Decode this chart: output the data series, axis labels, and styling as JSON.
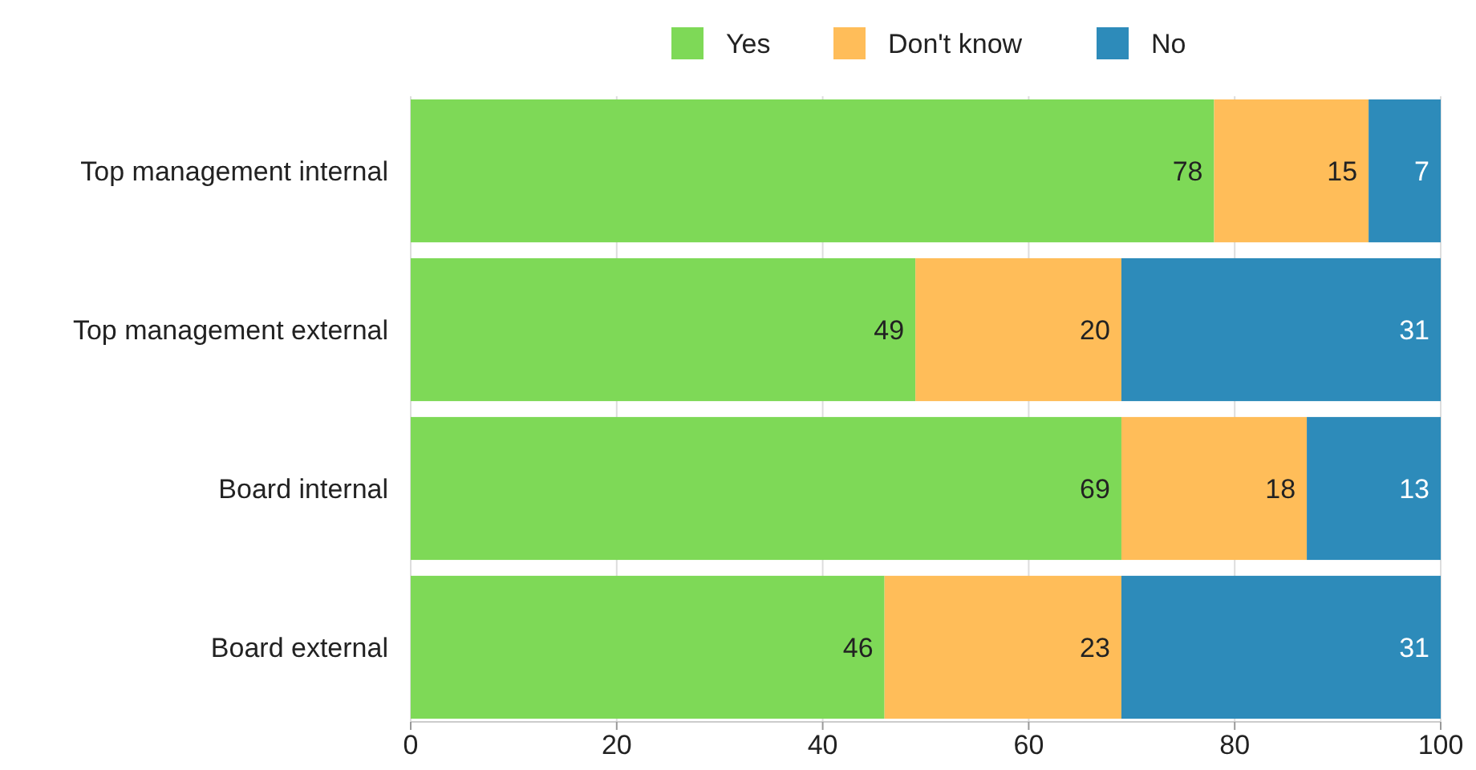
{
  "chart_data": {
    "type": "bar",
    "orientation": "horizontal",
    "stacked": true,
    "categories": [
      "Top management internal",
      "Top management external",
      "Board internal",
      "Board external"
    ],
    "series": [
      {
        "name": "Yes",
        "color": "#7ed957",
        "values": [
          78,
          49,
          69,
          46
        ]
      },
      {
        "name": "Don't know",
        "color": "#ffbd59",
        "values": [
          15,
          20,
          18,
          23
        ]
      },
      {
        "name": "No",
        "color": "#2d8bba",
        "values": [
          7,
          31,
          13,
          31
        ]
      }
    ],
    "xlim": [
      0,
      100
    ],
    "xticks": [
      0,
      20,
      40,
      60,
      80,
      100
    ],
    "grid": "x",
    "legend": "top",
    "data_labels": true
  }
}
